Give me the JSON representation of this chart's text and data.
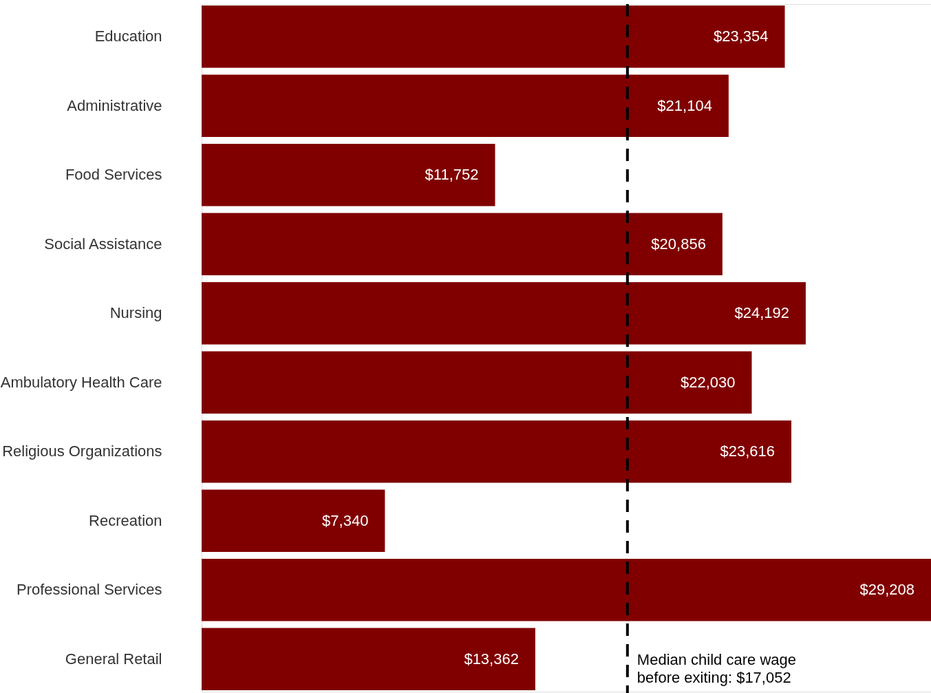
{
  "chart_data": {
    "type": "bar",
    "orientation": "horizontal",
    "categories": [
      "Education",
      "Administrative",
      "Food Services",
      "Social Assistance",
      "Nursing",
      "Ambulatory Health Care",
      "Religious Organizations",
      "Recreation",
      "Professional Services",
      "General Retail"
    ],
    "values": [
      23354,
      21104,
      11752,
      20856,
      24192,
      22030,
      23616,
      7340,
      29208,
      13362
    ],
    "value_labels": [
      "$23,354",
      "$21,104",
      "$11,752",
      "$20,856",
      "$24,192",
      "$22,030",
      "$23,616",
      "$7,340",
      "$29,208",
      "$13,362"
    ],
    "color": "#800000",
    "ref_lines": [
      {
        "axis": "x",
        "value": 17052,
        "label": "Median child care wage\nbefore exiting: $17,052",
        "color": "#000000",
        "line_style": "dashed"
      }
    ],
    "tick_labels": "y"
  }
}
